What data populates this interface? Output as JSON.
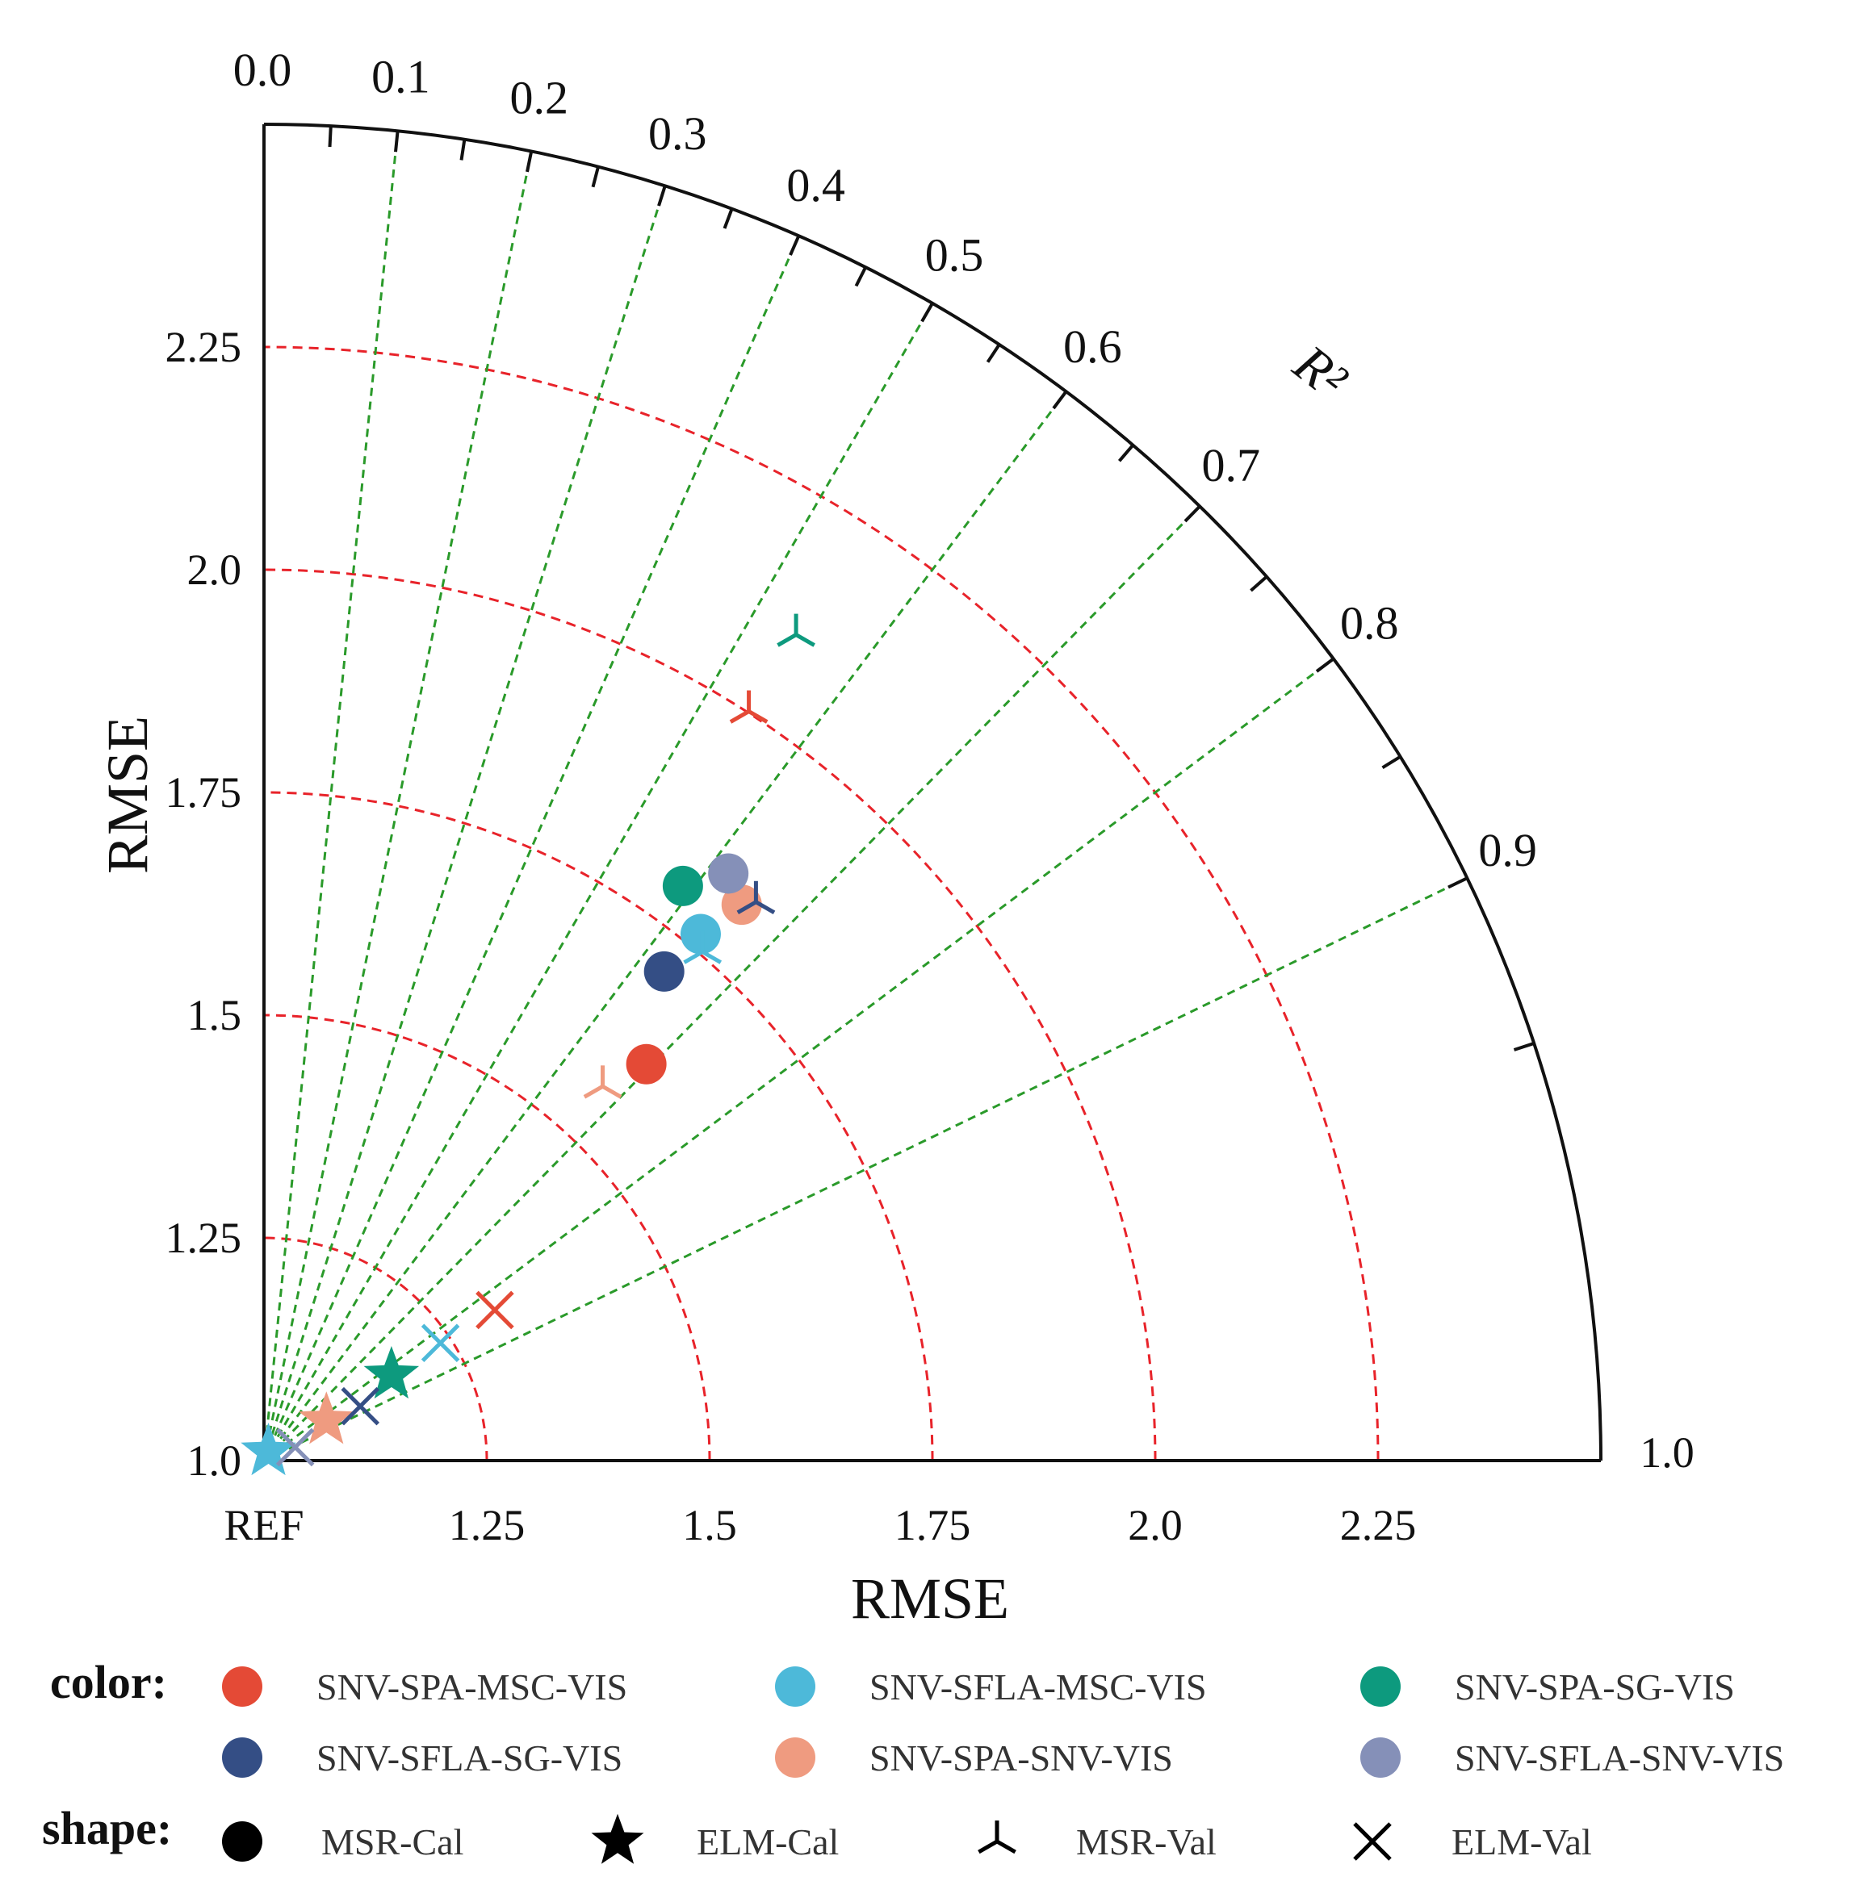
{
  "chart_data": {
    "type": "taylor",
    "title": "",
    "xlabel": "RMSE",
    "ylabel": "RMSE",
    "angular_label": "R²",
    "origin_label": "REF",
    "rmse_range": [
      1.0,
      2.5
    ],
    "x_ticks": [
      {
        "value": 1.25,
        "label": "1.25"
      },
      {
        "value": 1.5,
        "label": "1.5"
      },
      {
        "value": 1.75,
        "label": "1.75"
      },
      {
        "value": 2.0,
        "label": "2.0"
      },
      {
        "value": 2.25,
        "label": "2.25"
      }
    ],
    "y_ticks": [
      {
        "value": 1.0,
        "label": "1.0"
      },
      {
        "value": 1.25,
        "label": "1.25"
      },
      {
        "value": 1.5,
        "label": "1.5"
      },
      {
        "value": 1.75,
        "label": "1.75"
      },
      {
        "value": 2.0,
        "label": "2.0"
      },
      {
        "value": 2.25,
        "label": "2.25"
      }
    ],
    "right_end_label": "1.0",
    "rmse_arcs": [
      1.25,
      1.5,
      1.75,
      2.0,
      2.25
    ],
    "r2_ticks": [
      {
        "value": 0.0,
        "label": "0.0"
      },
      {
        "value": 0.1,
        "label": "0.1"
      },
      {
        "value": 0.2,
        "label": "0.2"
      },
      {
        "value": 0.3,
        "label": "0.3"
      },
      {
        "value": 0.4,
        "label": "0.4"
      },
      {
        "value": 0.5,
        "label": "0.5"
      },
      {
        "value": 0.6,
        "label": "0.6"
      },
      {
        "value": 0.7,
        "label": "0.7"
      },
      {
        "value": 0.8,
        "label": "0.8"
      },
      {
        "value": 0.9,
        "label": "0.9"
      }
    ],
    "r2_minor_ticks": [
      0.05,
      0.15,
      0.25,
      0.35,
      0.45,
      0.55,
      0.65,
      0.75,
      0.85,
      0.95
    ],
    "arc_color": "#e8232a",
    "ray_color": "#2a9a2a",
    "models": [
      {
        "name": "SNV-SPA-MSC-VIS",
        "color": "#e44a36"
      },
      {
        "name": "SNV-SFLA-MSC-VIS",
        "color": "#4db9d9"
      },
      {
        "name": "SNV-SPA-SG-VIS",
        "color": "#0d9a7e"
      },
      {
        "name": "SNV-SFLA-SG-VIS",
        "color": "#344e85"
      },
      {
        "name": "SNV-SPA-SNV-VIS",
        "color": "#ef9b80"
      },
      {
        "name": "SNV-SFLA-SNV-VIS",
        "color": "#8590b8"
      }
    ],
    "shapes": [
      {
        "name": "MSR-Cal",
        "shape": "circle"
      },
      {
        "name": "ELM-Cal",
        "shape": "star"
      },
      {
        "name": "MSR-Val",
        "shape": "tri_down"
      },
      {
        "name": "ELM-Val",
        "shape": "x"
      }
    ],
    "points": [
      {
        "model": "SNV-SPA-MSC-VIS",
        "method": "MSR-Cal",
        "x": 1.429,
        "y": 1.445
      },
      {
        "model": "SNV-SFLA-SG-VIS",
        "method": "MSR-Cal",
        "x": 1.449,
        "y": 1.549
      },
      {
        "model": "SNV-SFLA-MSC-VIS",
        "method": "MSR-Cal",
        "x": 1.49,
        "y": 1.591
      },
      {
        "model": "SNV-SPA-SG-VIS",
        "method": "MSR-Cal",
        "x": 1.47,
        "y": 1.645
      },
      {
        "model": "SNV-SPA-SNV-VIS",
        "method": "MSR-Cal",
        "x": 1.536,
        "y": 1.624
      },
      {
        "model": "SNV-SFLA-SNV-VIS",
        "method": "MSR-Cal",
        "x": 1.521,
        "y": 1.659
      },
      {
        "model": "SNV-SPA-MSC-VIS",
        "method": "MSR-Val",
        "x": 1.544,
        "y": 1.841
      },
      {
        "model": "SNV-SPA-SG-VIS",
        "method": "MSR-Val",
        "x": 1.597,
        "y": 1.927
      },
      {
        "model": "SNV-SFLA-SG-VIS",
        "method": "MSR-Val",
        "x": 1.552,
        "y": 1.627
      },
      {
        "model": "SNV-SFLA-MSC-VIS",
        "method": "MSR-Val",
        "x": 1.492,
        "y": 1.571
      },
      {
        "model": "SNV-SPA-SNV-VIS",
        "method": "MSR-Val",
        "x": 1.38,
        "y": 1.42
      },
      {
        "model": "SNV-SPA-SNV-VIS",
        "method": "ELM-Cal",
        "x": 1.07,
        "y": 1.045
      },
      {
        "model": "SNV-SPA-SG-VIS",
        "method": "ELM-Cal",
        "x": 1.143,
        "y": 1.096
      },
      {
        "model": "SNV-SFLA-MSC-VIS",
        "method": "ELM-Cal",
        "x": 1.005,
        "y": 1.01
      },
      {
        "model": "SNV-SPA-MSC-VIS",
        "method": "ELM-Val",
        "x": 1.259,
        "y": 1.169
      },
      {
        "model": "SNV-SFLA-MSC-VIS",
        "method": "ELM-Val",
        "x": 1.198,
        "y": 1.132
      },
      {
        "model": "SNV-SFLA-SG-VIS",
        "method": "ELM-Val",
        "x": 1.108,
        "y": 1.061
      },
      {
        "model": "SNV-SFLA-SNV-VIS",
        "method": "ELM-Val",
        "x": 1.035,
        "y": 1.015
      }
    ]
  },
  "legend": {
    "color_heading": "color:",
    "shape_heading": "shape:"
  }
}
